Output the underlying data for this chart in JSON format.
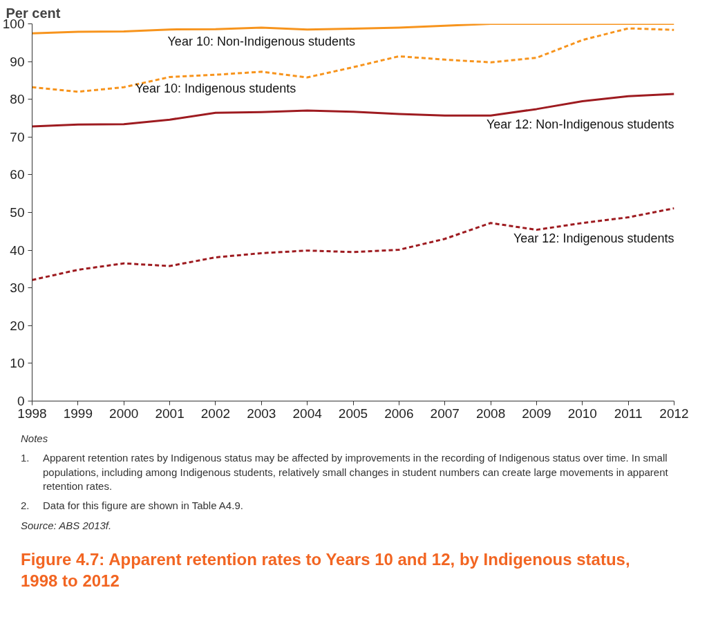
{
  "chart_data": {
    "type": "line",
    "title": "Figure 4.7: Apparent retention rates to Years 10 and 12, by Indigenous status, 1998 to 2012",
    "ylabel": "Per cent",
    "x": [
      1998,
      1999,
      2000,
      2001,
      2002,
      2003,
      2004,
      2005,
      2006,
      2007,
      2008,
      2009,
      2010,
      2011,
      2012
    ],
    "series": [
      {
        "name": "Year 10: Non-Indigenous students",
        "color": "#f7941d",
        "line_style": "solid",
        "values": [
          97.5,
          97.9,
          98.0,
          98.5,
          98.6,
          99.0,
          98.5,
          98.7,
          99.0,
          99.5,
          100,
          100,
          100,
          100,
          100
        ]
      },
      {
        "name": "Year 10: Indigenous students",
        "color": "#f7941d",
        "line_style": "dashed",
        "values": [
          83.2,
          82.0,
          83.2,
          85.9,
          86.5,
          87.3,
          85.8,
          88.5,
          91.4,
          90.5,
          89.8,
          91.0,
          95.7,
          98.8,
          98.4
        ]
      },
      {
        "name": "Year 12: Non-Indigenous students",
        "color": "#9e1b20",
        "line_style": "solid",
        "values": [
          72.8,
          73.3,
          73.4,
          74.6,
          76.4,
          76.6,
          77.0,
          76.7,
          76.1,
          75.7,
          75.7,
          77.4,
          79.5,
          80.8,
          81.4
        ]
      },
      {
        "name": "Year 12: Indigenous students",
        "color": "#9e1b20",
        "line_style": "dashed",
        "values": [
          32.1,
          34.8,
          36.5,
          35.8,
          38.1,
          39.2,
          39.9,
          39.5,
          40.1,
          43.0,
          47.2,
          45.4,
          47.2,
          48.7,
          51.1
        ]
      }
    ],
    "xlim": [
      1998,
      2012
    ],
    "ylim": [
      0,
      100
    ],
    "xticks": [
      1998,
      1999,
      2000,
      2001,
      2002,
      2003,
      2004,
      2005,
      2006,
      2007,
      2008,
      2009,
      2010,
      2011,
      2012
    ],
    "yticks": [
      0,
      10,
      20,
      30,
      40,
      50,
      60,
      70,
      80,
      90,
      100
    ],
    "grid": false,
    "legend": false,
    "annotations": [
      "Notes",
      "1.\tApparent retention rates by Indigenous status may be affected by improvements in the recording of Indigenous status over time. In small populations, including among Indigenous students, relatively small changes in student numbers can create large movements in apparent retention rates.",
      "2.\tData for this figure are shown in Table A4.9.",
      "Source: ABS 2013f."
    ]
  }
}
